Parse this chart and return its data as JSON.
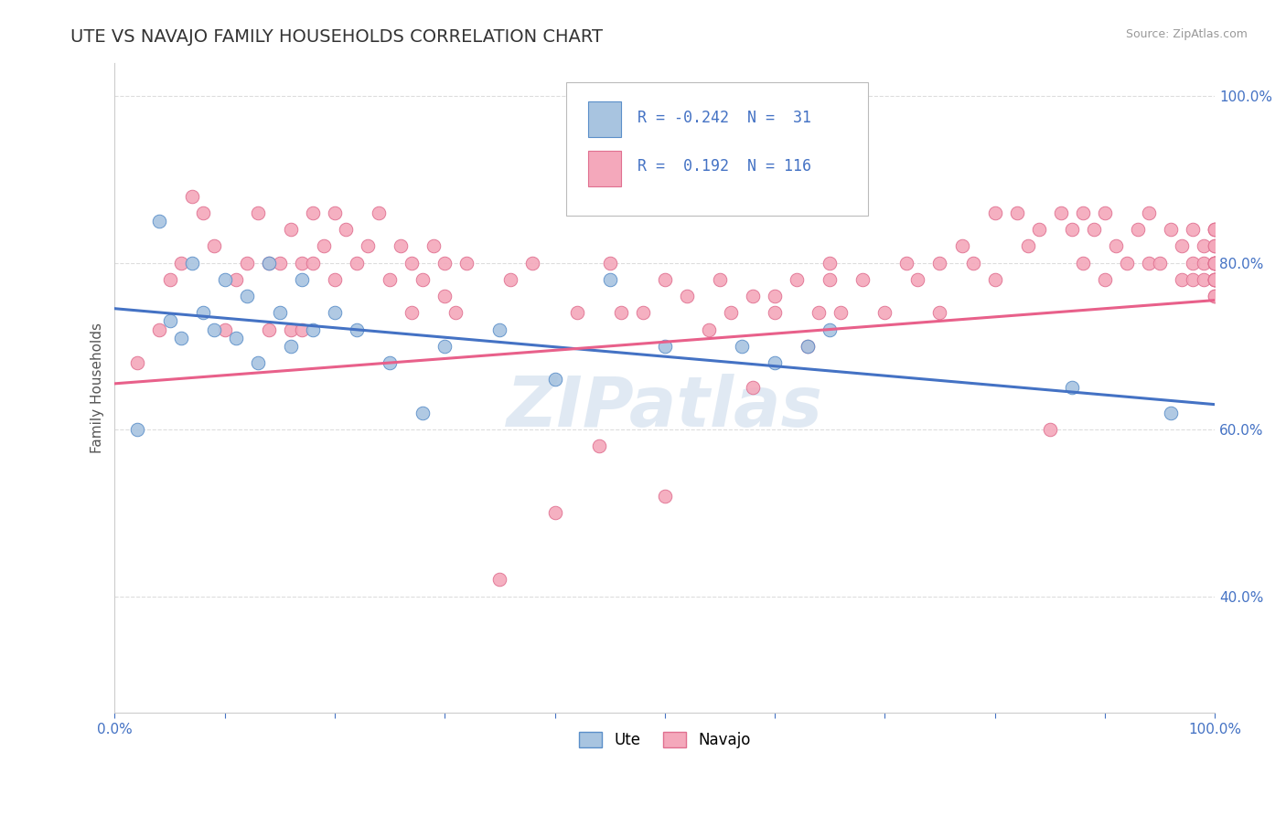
{
  "title": "UTE VS NAVAJO FAMILY HOUSEHOLDS CORRELATION CHART",
  "source": "Source: ZipAtlas.com",
  "ylabel_label": "Family Households",
  "xlim": [
    0.0,
    1.0
  ],
  "ylim": [
    0.26,
    1.04
  ],
  "y_tick_vals": [
    0.4,
    0.6,
    0.8,
    1.0
  ],
  "y_tick_labels": [
    "40.0%",
    "60.0%",
    "80.0%",
    "100.0%"
  ],
  "ute_color": "#a8c4e0",
  "navajo_color": "#f4a8bb",
  "ute_edge_color": "#5b8fc9",
  "navajo_edge_color": "#e07090",
  "ute_line_color": "#4472c4",
  "navajo_line_color": "#e8608a",
  "ute_R": -0.242,
  "ute_N": 31,
  "navajo_R": 0.192,
  "navajo_N": 116,
  "watermark": "ZIPatlas",
  "background_color": "#ffffff",
  "grid_color": "#dddddd",
  "ute_x": [
    0.02,
    0.04,
    0.05,
    0.06,
    0.07,
    0.08,
    0.09,
    0.1,
    0.11,
    0.12,
    0.13,
    0.14,
    0.15,
    0.16,
    0.17,
    0.18,
    0.2,
    0.22,
    0.25,
    0.28,
    0.3,
    0.35,
    0.4,
    0.45,
    0.5,
    0.57,
    0.6,
    0.63,
    0.65,
    0.87,
    0.96
  ],
  "ute_y": [
    0.6,
    0.85,
    0.73,
    0.71,
    0.8,
    0.74,
    0.72,
    0.78,
    0.71,
    0.76,
    0.68,
    0.8,
    0.74,
    0.7,
    0.78,
    0.72,
    0.74,
    0.72,
    0.68,
    0.62,
    0.7,
    0.72,
    0.66,
    0.78,
    0.7,
    0.7,
    0.68,
    0.7,
    0.72,
    0.65,
    0.62
  ],
  "navajo_x": [
    0.02,
    0.04,
    0.05,
    0.06,
    0.07,
    0.08,
    0.09,
    0.1,
    0.11,
    0.12,
    0.13,
    0.14,
    0.14,
    0.15,
    0.16,
    0.16,
    0.17,
    0.17,
    0.18,
    0.18,
    0.19,
    0.2,
    0.2,
    0.21,
    0.22,
    0.23,
    0.24,
    0.25,
    0.26,
    0.27,
    0.27,
    0.28,
    0.29,
    0.3,
    0.3,
    0.31,
    0.32,
    0.35,
    0.36,
    0.38,
    0.4,
    0.42,
    0.44,
    0.45,
    0.46,
    0.48,
    0.5,
    0.5,
    0.52,
    0.54,
    0.55,
    0.56,
    0.58,
    0.58,
    0.6,
    0.6,
    0.62,
    0.63,
    0.64,
    0.65,
    0.65,
    0.66,
    0.68,
    0.7,
    0.72,
    0.73,
    0.75,
    0.75,
    0.77,
    0.78,
    0.8,
    0.8,
    0.82,
    0.83,
    0.84,
    0.85,
    0.86,
    0.87,
    0.88,
    0.88,
    0.89,
    0.9,
    0.9,
    0.91,
    0.92,
    0.93,
    0.94,
    0.94,
    0.95,
    0.96,
    0.97,
    0.97,
    0.98,
    0.98,
    0.98,
    0.99,
    0.99,
    0.99,
    1.0,
    1.0,
    1.0,
    1.0,
    1.0,
    1.0,
    1.0,
    1.0,
    1.0,
    1.0,
    1.0,
    1.0,
    1.0,
    1.0,
    1.0,
    1.0,
    1.0,
    1.0
  ],
  "navajo_y": [
    0.68,
    0.72,
    0.78,
    0.8,
    0.88,
    0.86,
    0.82,
    0.72,
    0.78,
    0.8,
    0.86,
    0.8,
    0.72,
    0.8,
    0.84,
    0.72,
    0.8,
    0.72,
    0.8,
    0.86,
    0.82,
    0.78,
    0.86,
    0.84,
    0.8,
    0.82,
    0.86,
    0.78,
    0.82,
    0.74,
    0.8,
    0.78,
    0.82,
    0.76,
    0.8,
    0.74,
    0.8,
    0.42,
    0.78,
    0.8,
    0.5,
    0.74,
    0.58,
    0.8,
    0.74,
    0.74,
    0.52,
    0.78,
    0.76,
    0.72,
    0.78,
    0.74,
    0.76,
    0.65,
    0.76,
    0.74,
    0.78,
    0.7,
    0.74,
    0.78,
    0.8,
    0.74,
    0.78,
    0.74,
    0.8,
    0.78,
    0.8,
    0.74,
    0.82,
    0.8,
    0.86,
    0.78,
    0.86,
    0.82,
    0.84,
    0.6,
    0.86,
    0.84,
    0.86,
    0.8,
    0.84,
    0.78,
    0.86,
    0.82,
    0.8,
    0.84,
    0.8,
    0.86,
    0.8,
    0.84,
    0.82,
    0.78,
    0.8,
    0.78,
    0.84,
    0.8,
    0.82,
    0.78,
    0.8,
    0.84,
    0.78,
    0.8,
    0.84,
    0.82,
    0.8,
    0.78,
    0.82,
    0.78,
    0.8,
    0.76,
    0.8,
    0.78,
    0.84,
    0.8,
    0.78,
    0.76
  ],
  "ute_line_x0": 0.0,
  "ute_line_x1": 1.0,
  "ute_line_y0": 0.745,
  "ute_line_y1": 0.63,
  "navajo_line_x0": 0.0,
  "navajo_line_x1": 1.0,
  "navajo_line_y0": 0.655,
  "navajo_line_y1": 0.755
}
